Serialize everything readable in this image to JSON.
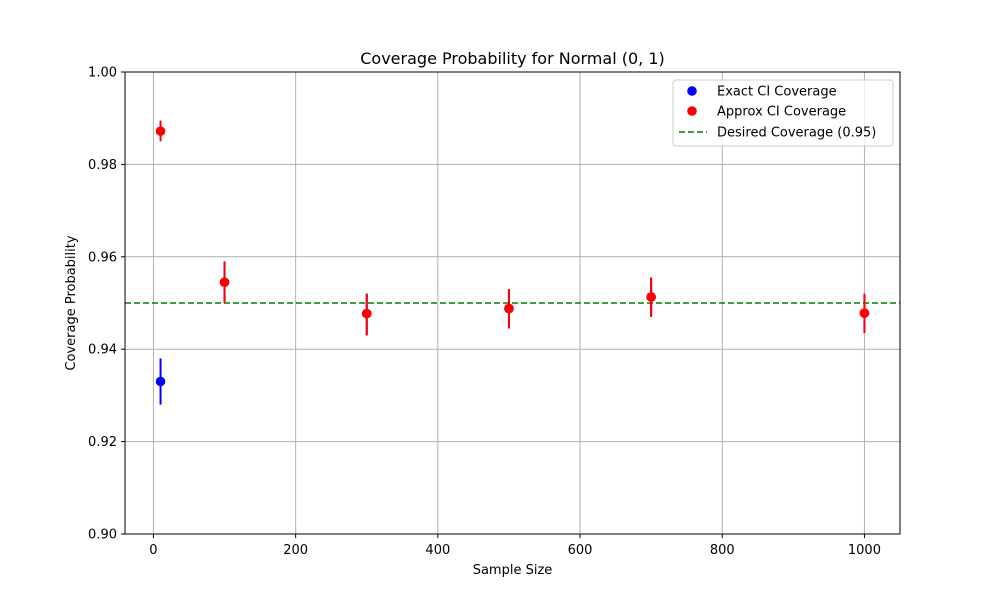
{
  "chart_data": {
    "type": "scatter",
    "title": "Coverage Probability for Normal (0, 1)",
    "xlabel": "Sample Size",
    "ylabel": "Coverage Probability",
    "xlim": [
      -40,
      1050
    ],
    "ylim": [
      0.9,
      1.0
    ],
    "x_ticks": [
      0,
      200,
      400,
      600,
      800,
      1000
    ],
    "y_ticks": [
      0.9,
      0.92,
      0.94,
      0.96,
      0.98,
      1.0
    ],
    "x_tick_labels": [
      "0",
      "200",
      "400",
      "600",
      "800",
      "1000"
    ],
    "y_tick_labels": [
      "0.90",
      "0.92",
      "0.94",
      "0.96",
      "0.98",
      "1.00"
    ],
    "grid": true,
    "legend_position": "top-right",
    "series": [
      {
        "name": "Exact CI Coverage",
        "color": "#0000ff",
        "points": [
          {
            "x": 10,
            "y": 0.933,
            "ci": [
              0.928,
              0.938
            ]
          },
          {
            "x": 100,
            "y": 0.9545,
            "ci": [
              0.95,
              0.959
            ]
          },
          {
            "x": 300,
            "y": 0.9477,
            "ci": [
              0.943,
              0.952
            ]
          },
          {
            "x": 500,
            "y": 0.9488,
            "ci": [
              0.9445,
              0.953
            ]
          },
          {
            "x": 700,
            "y": 0.9513,
            "ci": [
              0.947,
              0.9555
            ]
          },
          {
            "x": 1000,
            "y": 0.9478,
            "ci": [
              0.9435,
              0.952
            ]
          }
        ]
      },
      {
        "name": "Approx CI Coverage",
        "color": "#ff0000",
        "points": [
          {
            "x": 10,
            "y": 0.9872,
            "ci": [
              0.985,
              0.9895
            ]
          },
          {
            "x": 100,
            "y": 0.9545,
            "ci": [
              0.95,
              0.959
            ]
          },
          {
            "x": 300,
            "y": 0.9477,
            "ci": [
              0.943,
              0.952
            ]
          },
          {
            "x": 500,
            "y": 0.9488,
            "ci": [
              0.9445,
              0.953
            ]
          },
          {
            "x": 700,
            "y": 0.9513,
            "ci": [
              0.947,
              0.9555
            ]
          },
          {
            "x": 1000,
            "y": 0.9478,
            "ci": [
              0.9435,
              0.952
            ]
          }
        ]
      }
    ],
    "reference_line": {
      "name": "Desired Coverage (0.95)",
      "y": 0.95,
      "color": "#008000",
      "style": "dashed"
    }
  }
}
